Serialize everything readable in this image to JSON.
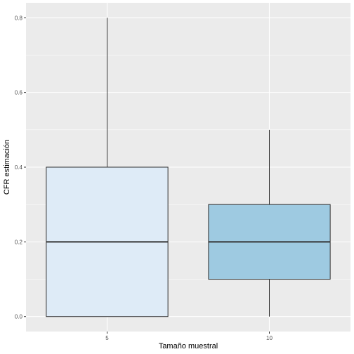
{
  "chart_data": {
    "type": "boxplot",
    "xlabel": "Tamaño muestral",
    "ylabel": "CFR estimación",
    "categories": [
      "5",
      "10"
    ],
    "boxes": [
      {
        "category": "5",
        "min": 0.0,
        "q1": 0.0,
        "median": 0.2,
        "q3": 0.4,
        "max": 0.8,
        "fill": "#deebf7"
      },
      {
        "category": "10",
        "min": 0.0,
        "q1": 0.1,
        "median": 0.2,
        "q3": 0.3,
        "max": 0.5,
        "fill": "#9ecae1"
      }
    ],
    "ylim": [
      -0.04,
      0.84
    ],
    "yticks": [
      0.0,
      0.2,
      0.4,
      0.6,
      0.8
    ],
    "ytick_labels": [
      "0.0",
      "0.2",
      "0.4",
      "0.6",
      "0.8"
    ],
    "grid": true,
    "colors": {
      "panel": "#ebebeb",
      "grid": "#ffffff",
      "outline": "#333333"
    }
  }
}
